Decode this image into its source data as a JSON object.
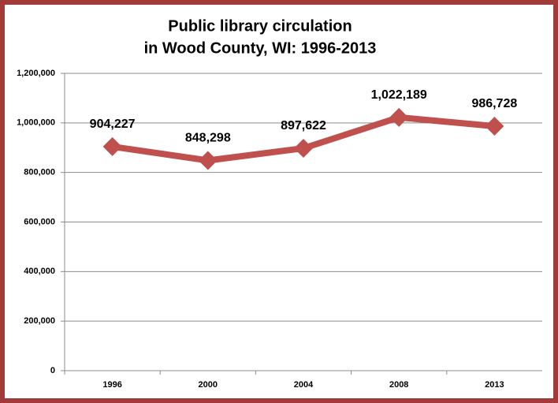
{
  "chart_data": {
    "type": "line",
    "title": [
      "Public library circulation",
      "in Wood County, WI:  1996-2013"
    ],
    "categories": [
      "1996",
      "2000",
      "2004",
      "2008",
      "2013"
    ],
    "series": [
      {
        "name": "Circulation",
        "color": "#c0504d",
        "values": [
          904227,
          848298,
          897622,
          1022189,
          986728
        ],
        "value_labels": [
          "904,227",
          "848,298",
          "897,622",
          "1,022,189",
          "986,728"
        ]
      }
    ],
    "ylim": [
      0,
      1200000
    ],
    "yticks": [
      0,
      {
        "value": 200000,
        "label": "200,000"
      },
      {
        "value": 400000,
        "label": "400,000"
      },
      {
        "value": 600000,
        "label": "600,000"
      },
      {
        "value": 800000,
        "label": "800,000"
      },
      {
        "value": 1000000,
        "label": "1,000,000"
      },
      {
        "value": 1200000,
        "label": "1,200,000"
      }
    ],
    "grid": true
  }
}
